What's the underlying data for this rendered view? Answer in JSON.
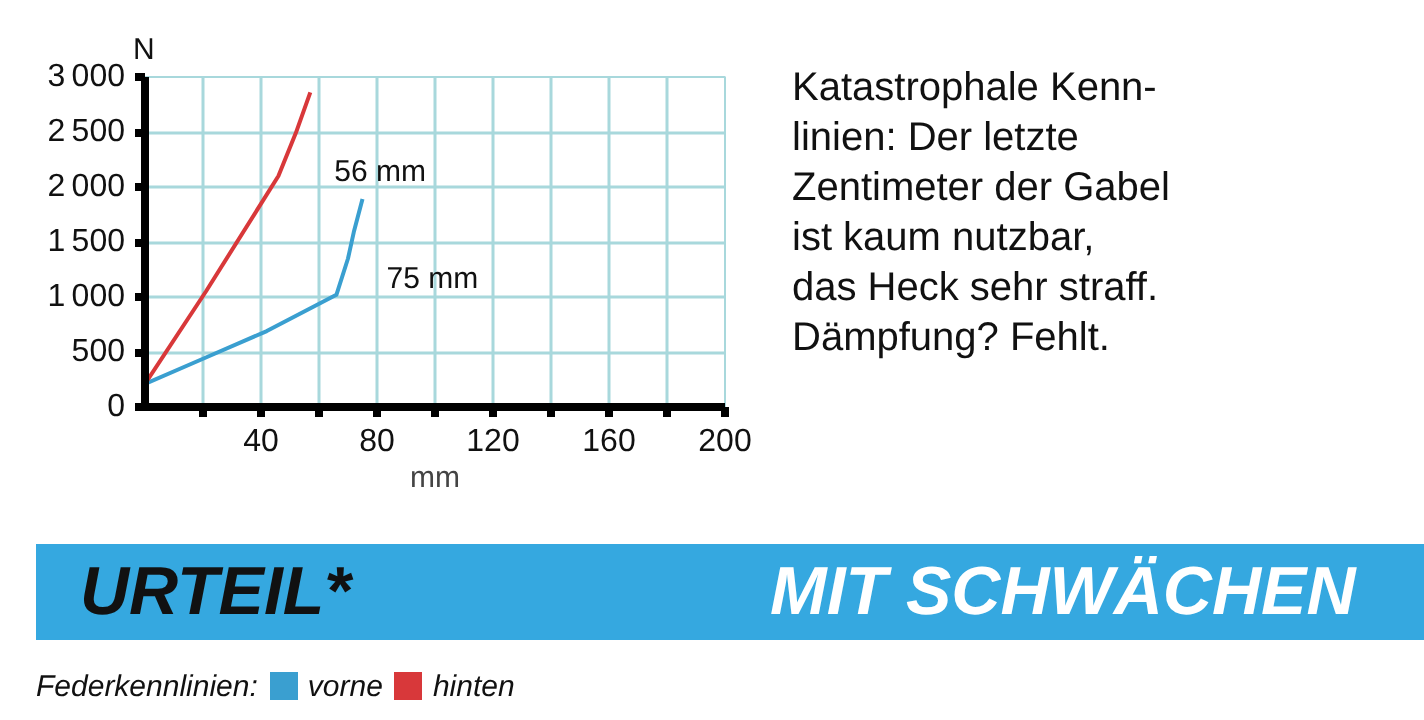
{
  "chart_data": {
    "type": "line",
    "xlabel": "mm",
    "ylabel": "N",
    "xlim": [
      0,
      200
    ],
    "ylim": [
      0,
      3000
    ],
    "xticks": [
      {
        "value": 20,
        "label": null
      },
      40,
      {
        "value": 60,
        "label": null
      },
      80,
      {
        "value": 100,
        "label": null
      },
      120,
      {
        "value": 140,
        "label": null
      },
      160,
      {
        "value": 180,
        "label": null
      },
      200
    ],
    "yticks": [
      0,
      500,
      1000,
      1500,
      2000,
      2500,
      3000
    ],
    "grid": true,
    "legend": "bottom",
    "legend_title": "Federkennlinien:",
    "line_style": "solid",
    "series": [
      {
        "name": "vorne",
        "color": "#3a9fd0",
        "x": [
          0,
          21,
          42,
          66,
          70,
          72,
          75
        ],
        "values": [
          210,
          450,
          690,
          1020,
          1350,
          1590,
          1890
        ]
      },
      {
        "name": "hinten",
        "color": "#d8383a",
        "x": [
          0,
          21,
          46,
          52,
          57
        ],
        "values": [
          210,
          1050,
          2100,
          2490,
          2860
        ]
      }
    ],
    "annotations": [
      "75 mm",
      "56 mm",
      "Katastrophale Kenn-\nlinien: Der letzte\nZentimeter der Gabel\nist kaum nutzbar,\ndas Heck sehr straff.\nDämpfung? Fehlt.",
      "URTEIL*",
      "MIT SCHWÄCHEN"
    ]
  }
}
